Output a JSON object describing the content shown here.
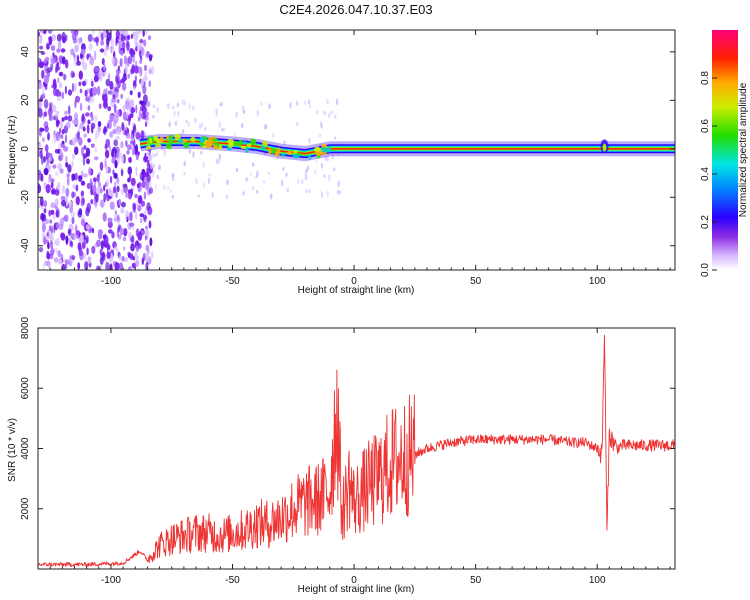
{
  "chart_data": [
    {
      "type": "heatmap",
      "title": "C2E4.2026.047.10.37.E03",
      "xlabel": "Height of straight line (km)",
      "ylabel": "Frequency (Hz)",
      "xlim": [
        -130,
        132
      ],
      "ylim": [
        -50,
        49
      ],
      "xticks": [
        "-100",
        "-50",
        "0",
        "50",
        "100"
      ],
      "yticks": [
        "40",
        "20",
        "0",
        "-20",
        "-40"
      ],
      "colorbar": {
        "label": "Normalized spectral amplitude",
        "ticks": [
          "0.0",
          "0.2",
          "0.4",
          "0.6",
          "0.8"
        ],
        "range": [
          0,
          1
        ]
      },
      "description_data": {
        "noise_region_x": [
          -130,
          -83
        ],
        "signal_trace": [
          {
            "x": -88,
            "y": 2
          },
          {
            "x": -80,
            "y": 3
          },
          {
            "x": -65,
            "y": 3
          },
          {
            "x": -50,
            "y": 2
          },
          {
            "x": -40,
            "y": 1
          },
          {
            "x": -30,
            "y": -1
          },
          {
            "x": -20,
            "y": -2
          },
          {
            "x": -10,
            "y": 0
          },
          {
            "x": 0,
            "y": 0
          },
          {
            "x": 50,
            "y": 0
          },
          {
            "x": 100,
            "y": 0
          },
          {
            "x": 132,
            "y": 0
          }
        ]
      }
    },
    {
      "type": "line",
      "title": "",
      "xlabel": "Height of straight line (km)",
      "ylabel": "SNR (10 * v/v)",
      "xlim": [
        -130,
        132
      ],
      "ylim": [
        0,
        8000
      ],
      "xticks": [
        "-100",
        "-50",
        "0",
        "50",
        "100"
      ],
      "yticks": [
        "8000",
        "6000",
        "4000",
        "2000"
      ],
      "series": [
        {
          "name": "SNR",
          "color": "#ee3333",
          "x": [
            -130,
            -110,
            -95,
            -88,
            -85,
            -80,
            -75,
            -70,
            -65,
            -60,
            -55,
            -50,
            -45,
            -40,
            -35,
            -30,
            -25,
            -20,
            -15,
            -10,
            -7,
            -5,
            -2,
            0,
            5,
            10,
            15,
            20,
            25,
            30,
            40,
            50,
            60,
            70,
            80,
            90,
            95,
            100,
            102,
            103,
            104,
            105,
            106,
            108,
            110,
            120,
            132
          ],
          "values": [
            150,
            150,
            200,
            600,
            300,
            800,
            1000,
            1100,
            1200,
            1200,
            1100,
            1200,
            1300,
            1500,
            1500,
            1700,
            2000,
            2200,
            2300,
            2600,
            5500,
            1800,
            2900,
            2200,
            2700,
            3000,
            3500,
            3700,
            3800,
            4000,
            4200,
            4300,
            4300,
            4300,
            4300,
            4200,
            4200,
            4000,
            3800,
            8000,
            1100,
            4500,
            4300,
            4000,
            4100,
            4100,
            4100
          ]
        }
      ]
    }
  ],
  "colors": {
    "line": "#ee3333",
    "noise": "#7a1cf0",
    "frame": "#222222"
  }
}
